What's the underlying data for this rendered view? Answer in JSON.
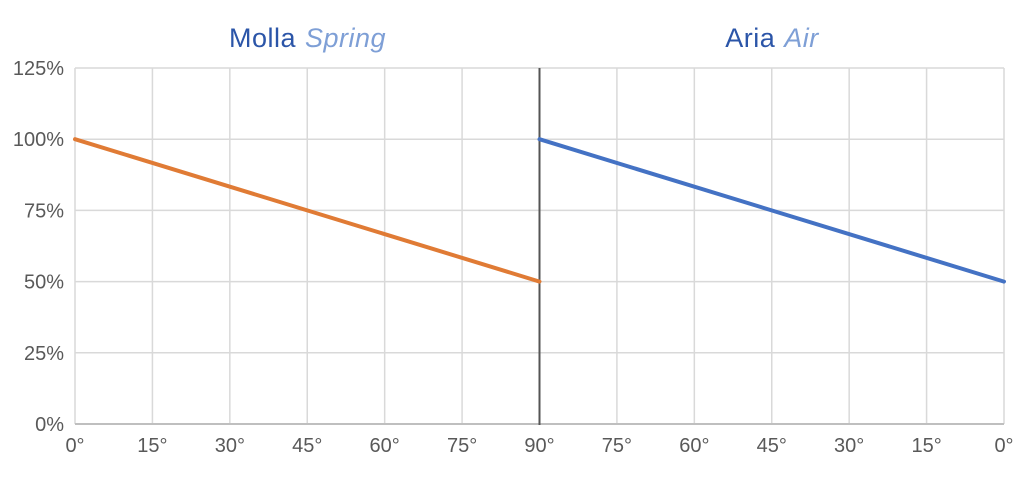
{
  "titles": {
    "left": {
      "brand": "Molla",
      "model": "Spring"
    },
    "right": {
      "brand": "Aria",
      "model": "Air"
    }
  },
  "colors": {
    "title_brand": "#2b55a8",
    "title_model": "#7e9fd6",
    "grid": "#d9d9d9",
    "axis_line": "#bfbfbf",
    "axis_text": "#595959",
    "divider": "#555555",
    "background": "#ffffff",
    "series_left": "#e07b35",
    "series_right": "#4472c4"
  },
  "chart_data": {
    "type": "line",
    "title": "Molla Spring vs Aria Air",
    "subtitle_left": "Molla Spring",
    "subtitle_right": "Aria Air",
    "xlabel": "",
    "ylabel": "",
    "ylim": [
      0,
      125
    ],
    "grid": true,
    "legend": "none",
    "y_ticks": [
      {
        "label": "0%",
        "value": 0
      },
      {
        "label": "25%",
        "value": 25
      },
      {
        "label": "50%",
        "value": 50
      },
      {
        "label": "75%",
        "value": 75
      },
      {
        "label": "100%",
        "value": 100
      },
      {
        "label": "125%",
        "value": 125
      }
    ],
    "x_tick_labels": [
      "0°",
      "15°",
      "30°",
      "45°",
      "60°",
      "75°",
      "90°",
      "75°",
      "60°",
      "45°",
      "30°",
      "15°",
      "0°"
    ],
    "divider_x_index": 6,
    "series": [
      {
        "name": "Molla Spring",
        "color": "#e07b35",
        "points": [
          {
            "x_index": 0,
            "x_label": "0°",
            "y": 100
          },
          {
            "x_index": 6,
            "x_label": "90°",
            "y": 50
          }
        ]
      },
      {
        "name": "Aria Air",
        "color": "#4472c4",
        "points": [
          {
            "x_index": 6,
            "x_label": "90°",
            "y": 100
          },
          {
            "x_index": 12,
            "x_label": "0°",
            "y": 50
          }
        ]
      }
    ]
  }
}
